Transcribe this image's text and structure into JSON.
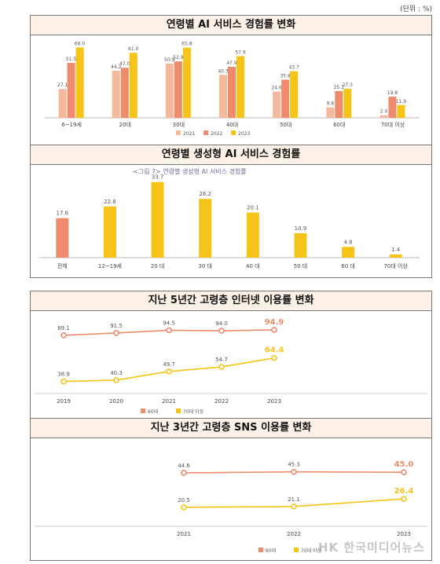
{
  "unit_note": "(단위 : %)",
  "watermark": "HK 한국미디어뉴스",
  "colors": {
    "c2021": "#f4b89a",
    "c2022": "#ee8b6c",
    "c2023": "#f6c417",
    "orange": "#ee8b6c",
    "yellow": "#f6c417"
  },
  "chart_data": [
    {
      "type": "bar",
      "title": "연령별 AI 서비스 경험률 변화",
      "categories": [
        "6~19세",
        "20대",
        "30대",
        "40대",
        "50대",
        "60대",
        "70대 이상"
      ],
      "series": [
        {
          "name": "2021",
          "values": [
            27.1,
            44.2,
            50.9,
            40.3,
            24.6,
            9.8,
            2.4
          ]
        },
        {
          "name": "2022",
          "values": [
            51.5,
            47.0,
            52.9,
            47.9,
            35.8,
            25.1,
            19.8
          ]
        },
        {
          "name": "2023",
          "values": [
            66.0,
            61.0,
            65.8,
            57.9,
            43.7,
            27.3,
            11.9
          ]
        }
      ],
      "ylim": [
        0,
        70
      ],
      "legend": "bottom"
    },
    {
      "type": "bar",
      "title": "연령별 생성형 AI 서비스 경험률",
      "subtitle": "<그림 7> 연령별 생성형 AI 서비스 경험률",
      "categories": [
        "전체",
        "12~19세",
        "20 대",
        "30 대",
        "40 대",
        "50 대",
        "60 대",
        "70대 이상"
      ],
      "values": [
        17.6,
        22.8,
        33.7,
        26.2,
        20.1,
        10.9,
        4.8,
        1.4
      ],
      "ylim": [
        0,
        35
      ]
    },
    {
      "type": "line",
      "title": "지난 5년간 고령층 인터넷 이용률 변화",
      "x": [
        "2019",
        "2020",
        "2021",
        "2022",
        "2023"
      ],
      "series": [
        {
          "name": "60대",
          "values": [
            89.1,
            91.5,
            94.5,
            94.0,
            94.9
          ]
        },
        {
          "name": "70대 이상",
          "values": [
            38.9,
            40.3,
            49.7,
            54.7,
            64.4
          ]
        }
      ],
      "ylim": [
        30,
        100
      ],
      "legend": "bottom"
    },
    {
      "type": "line",
      "title": "지난 3년간 고령층 SNS 이용률 변화",
      "x": [
        "2021",
        "2022",
        "2023"
      ],
      "series": [
        {
          "name": "60대",
          "values": [
            44.6,
            45.3,
            45.0
          ]
        },
        {
          "name": "70대 이상",
          "values": [
            20.5,
            21.1,
            26.4
          ]
        }
      ],
      "ylim": [
        10,
        55
      ],
      "legend": "bottom"
    }
  ]
}
